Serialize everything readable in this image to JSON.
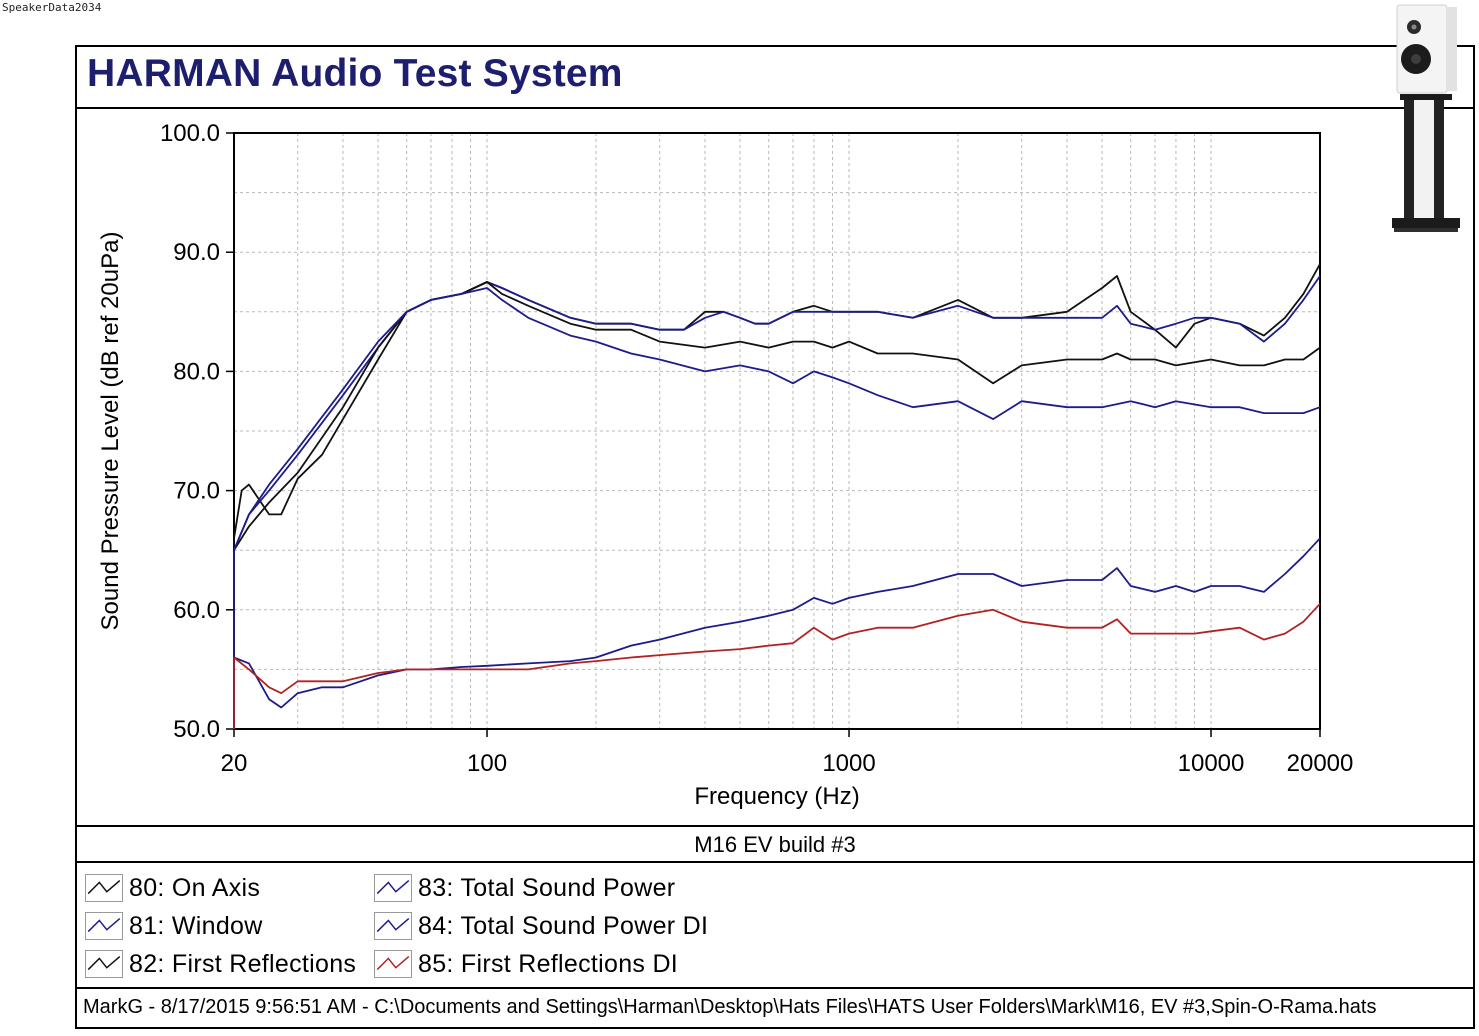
{
  "watermark": "SpeakerData2034",
  "header": {
    "title": "HARMAN Audio Test System"
  },
  "test_name": "M16 EV build #3",
  "footer": {
    "path": "MarkG - 8/17/2015 9:56:51 AM - C:\\Documents and Settings\\Harman\\Desktop\\Hats Files\\HATS User Folders\\Mark\\M16, EV #3,Spin-O-Rama.hats"
  },
  "colors": {
    "black": "#111111",
    "navy": "#1c1c8c",
    "red": "#b22222",
    "grid": "#b8b8b8",
    "title": "#1e1e6e"
  },
  "icons": {
    "speaker": "bookshelf-speaker-on-stand-icon"
  },
  "legend": [
    {
      "label": "80: On Axis",
      "color": "#111111"
    },
    {
      "label": "81: Window",
      "color": "#1c1c8c"
    },
    {
      "label": "82: First Reflections",
      "color": "#111111"
    },
    {
      "label": "83: Total Sound Power",
      "color": "#1c1c8c"
    },
    {
      "label": "84: Total Sound Power DI",
      "color": "#1c1c8c"
    },
    {
      "label": "85: First Reflections DI",
      "color": "#b22222"
    }
  ],
  "chart_data": {
    "type": "line",
    "xlabel": "Frequency (Hz)",
    "ylabel": "Sound Pressure Level (dB ref 20uPa)",
    "xscale": "log",
    "xlim": [
      20,
      20000
    ],
    "ylim": [
      50,
      100
    ],
    "xticks": [
      20,
      100,
      1000,
      10000,
      20000
    ],
    "xtick_labels": [
      "20",
      "100",
      "1000",
      "10000",
      "20000"
    ],
    "yticks": [
      50,
      60,
      70,
      80,
      90,
      100
    ],
    "ytick_labels": [
      "50.0",
      "60.0",
      "70.0",
      "80.0",
      "90.0",
      "100.0"
    ],
    "grid": true,
    "series": [
      {
        "name": "80: On Axis",
        "color": "#111111",
        "x": [
          20,
          21,
          22,
          25,
          27,
          30,
          35,
          40,
          50,
          60,
          70,
          85,
          100,
          110,
          130,
          170,
          200,
          250,
          300,
          350,
          400,
          450,
          500,
          550,
          600,
          700,
          800,
          900,
          1000,
          1200,
          1500,
          2000,
          2500,
          3000,
          4000,
          5000,
          5500,
          6000,
          7000,
          8000,
          9000,
          10000,
          12000,
          14000,
          16000,
          18000,
          20000
        ],
        "y": [
          66,
          70,
          70.5,
          68,
          68,
          71,
          73,
          76,
          81,
          85,
          86,
          86.5,
          87.5,
          87,
          86,
          84.5,
          84,
          84,
          83.5,
          83.5,
          85,
          85,
          84.5,
          84,
          84,
          85,
          85.5,
          85,
          85,
          85,
          84.5,
          86,
          84.5,
          84.5,
          85,
          87,
          88,
          85,
          83.5,
          82,
          84,
          84.5,
          84,
          83,
          84.5,
          86.5,
          89
        ]
      },
      {
        "name": "81: Window",
        "color": "#1c1c8c",
        "x": [
          20,
          22,
          25,
          30,
          40,
          50,
          60,
          70,
          85,
          100,
          110,
          130,
          170,
          200,
          250,
          300,
          350,
          400,
          450,
          500,
          550,
          600,
          700,
          800,
          900,
          1000,
          1200,
          1500,
          2000,
          2500,
          3000,
          4000,
          5000,
          5500,
          6000,
          7000,
          8000,
          9000,
          10000,
          12000,
          14000,
          16000,
          18000,
          20000
        ],
        "y": [
          65,
          68,
          70,
          73,
          78,
          82,
          85,
          86,
          86.5,
          87.5,
          87,
          86,
          84.5,
          84,
          84,
          83.5,
          83.5,
          84.5,
          85,
          84.5,
          84,
          84,
          85,
          85,
          85,
          85,
          85,
          84.5,
          85.5,
          84.5,
          84.5,
          84.5,
          84.5,
          85.5,
          84,
          83.5,
          84,
          84.5,
          84.5,
          84,
          82.5,
          84,
          86,
          88
        ]
      },
      {
        "name": "82: First Reflections",
        "color": "#111111",
        "x": [
          20,
          22,
          25,
          30,
          40,
          50,
          60,
          70,
          85,
          100,
          110,
          130,
          170,
          200,
          250,
          300,
          400,
          500,
          600,
          700,
          800,
          900,
          1000,
          1200,
          1500,
          2000,
          2500,
          3000,
          4000,
          5000,
          5500,
          6000,
          7000,
          8000,
          10000,
          12000,
          14000,
          16000,
          18000,
          20000
        ],
        "y": [
          65,
          67,
          69,
          71.5,
          77,
          82,
          85,
          86,
          86.5,
          87.5,
          86.5,
          85.5,
          84,
          83.5,
          83.5,
          82.5,
          82,
          82.5,
          82,
          82.5,
          82.5,
          82,
          82.5,
          81.5,
          81.5,
          81,
          79,
          80.5,
          81,
          81,
          81.5,
          81,
          81,
          80.5,
          81,
          80.5,
          80.5,
          81,
          81,
          82
        ]
      },
      {
        "name": "83: Total Sound Power",
        "color": "#1c1c8c",
        "x": [
          20,
          22,
          25,
          30,
          40,
          50,
          60,
          70,
          85,
          100,
          110,
          130,
          170,
          200,
          250,
          300,
          400,
          500,
          600,
          700,
          800,
          900,
          1000,
          1200,
          1500,
          2000,
          2500,
          3000,
          4000,
          5000,
          6000,
          7000,
          8000,
          10000,
          12000,
          14000,
          16000,
          18000,
          20000
        ],
        "y": [
          65,
          68,
          70.5,
          73.5,
          78.5,
          82.5,
          85,
          86,
          86.5,
          87,
          86,
          84.5,
          83,
          82.5,
          81.5,
          81,
          80,
          80.5,
          80,
          79,
          80,
          79.5,
          79,
          78,
          77,
          77.5,
          76,
          77.5,
          77,
          77,
          77.5,
          77,
          77.5,
          77,
          77,
          76.5,
          76.5,
          76.5,
          77
        ]
      },
      {
        "name": "84: Total Sound Power DI",
        "color": "#1c1c8c",
        "x": [
          20,
          22,
          25,
          27,
          30,
          35,
          40,
          50,
          60,
          70,
          85,
          100,
          130,
          170,
          200,
          250,
          300,
          400,
          500,
          600,
          700,
          800,
          900,
          1000,
          1200,
          1500,
          2000,
          2500,
          3000,
          4000,
          5000,
          5500,
          6000,
          7000,
          8000,
          9000,
          10000,
          12000,
          14000,
          16000,
          18000,
          20000
        ],
        "y": [
          56,
          55.5,
          52.5,
          51.8,
          53,
          53.5,
          53.5,
          54.5,
          55,
          55,
          55.2,
          55.3,
          55.5,
          55.7,
          56,
          57,
          57.5,
          58.5,
          59,
          59.5,
          60,
          61,
          60.5,
          61,
          61.5,
          62,
          63,
          63,
          62,
          62.5,
          62.5,
          63.5,
          62,
          61.5,
          62,
          61.5,
          62,
          62,
          61.5,
          63,
          64.5,
          66
        ]
      },
      {
        "name": "85: First Reflections DI",
        "color": "#b22222",
        "x": [
          20,
          22,
          25,
          27,
          30,
          35,
          40,
          50,
          60,
          70,
          85,
          100,
          130,
          170,
          200,
          250,
          300,
          400,
          500,
          600,
          700,
          800,
          900,
          1000,
          1200,
          1500,
          2000,
          2500,
          3000,
          4000,
          5000,
          5500,
          6000,
          7000,
          8000,
          9000,
          10000,
          12000,
          14000,
          16000,
          18000,
          20000
        ],
        "y": [
          56,
          55,
          53.5,
          53,
          54,
          54,
          54,
          54.7,
          55,
          55,
          55,
          55,
          55,
          55.5,
          55.7,
          56,
          56.2,
          56.5,
          56.7,
          57,
          57.2,
          58.5,
          57.5,
          58,
          58.5,
          58.5,
          59.5,
          60,
          59,
          58.5,
          58.5,
          59.2,
          58,
          58,
          58,
          58,
          58.2,
          58.5,
          57.5,
          58,
          59,
          60.5
        ]
      }
    ]
  }
}
